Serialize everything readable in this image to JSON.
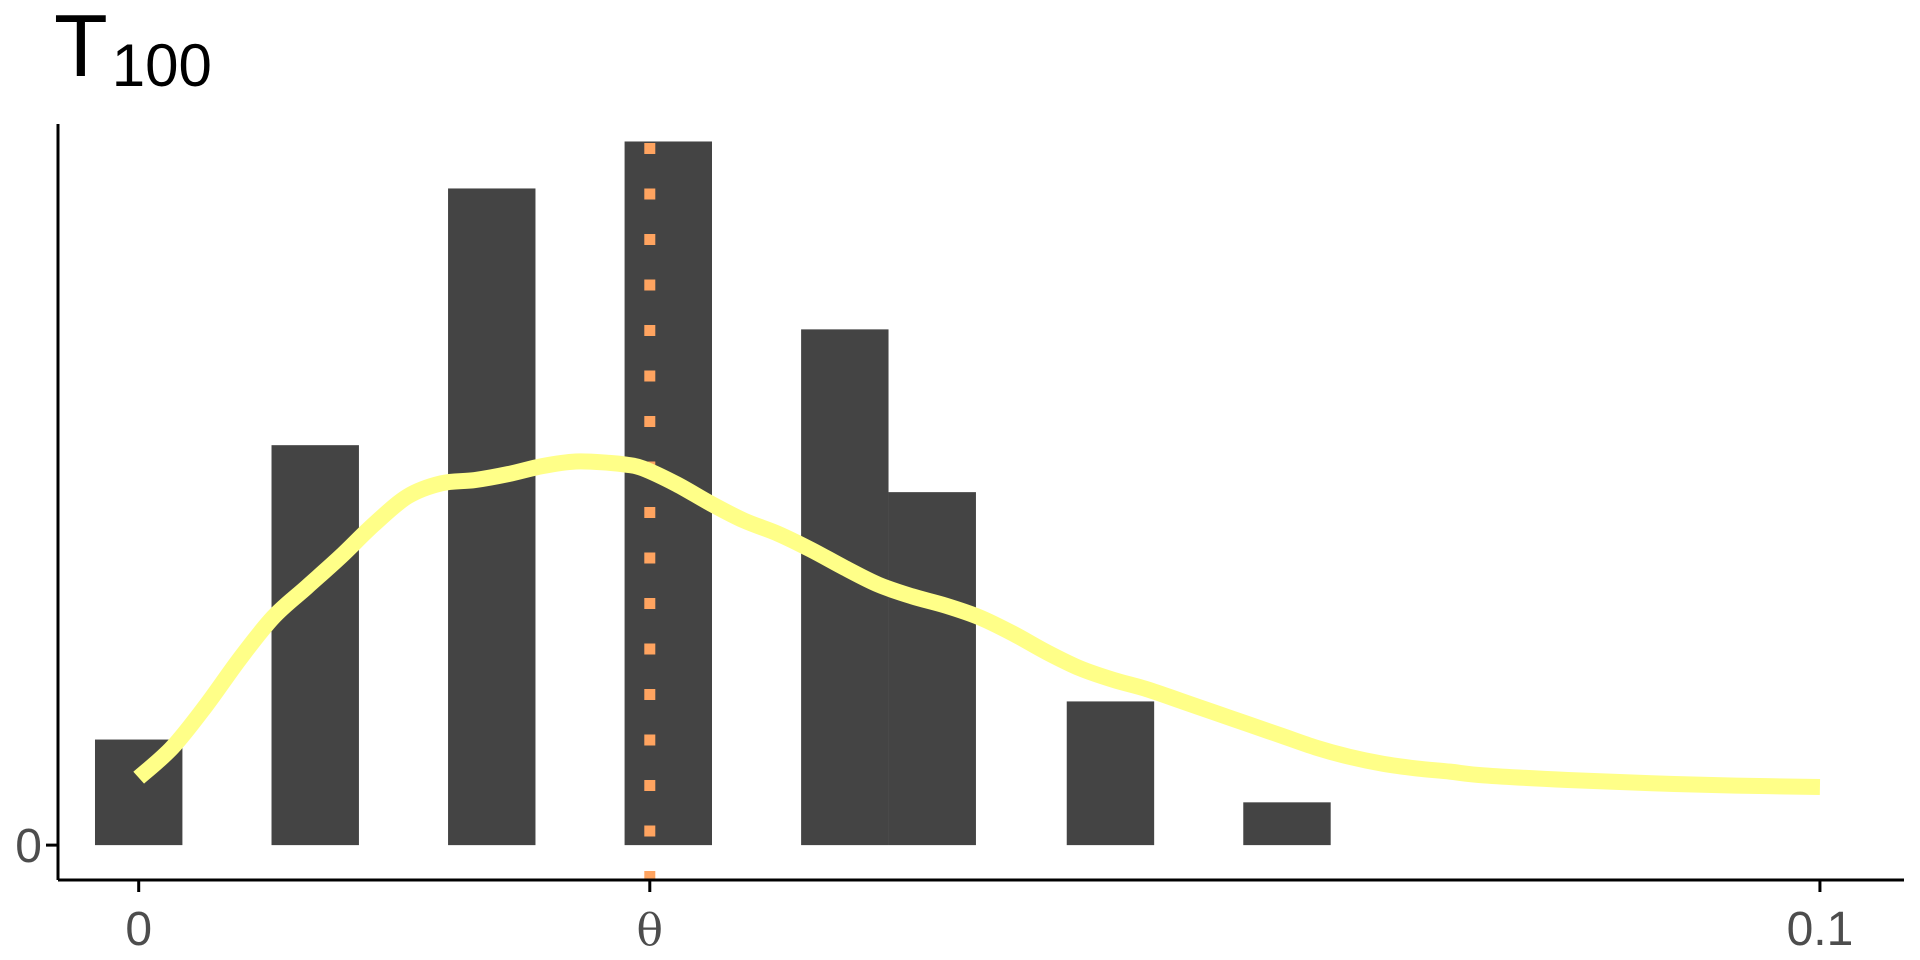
{
  "chart_data": {
    "type": "bar",
    "title": "T",
    "title_subscript": "100",
    "x_ticks": [
      {
        "value": 0,
        "label": "0"
      },
      {
        "value": 0.0304,
        "label": "θ"
      },
      {
        "value": 0.1,
        "label": "0.1"
      }
    ],
    "y_ticks": [
      {
        "value": 0,
        "label": "0"
      }
    ],
    "xlim": [
      -0.0048,
      0.105
    ],
    "ylim": [
      -0.075,
      1.585
    ],
    "bars": [
      {
        "x0": -0.0026,
        "x1": 0.0026,
        "value": 0.227
      },
      {
        "x0": 0.0079,
        "x1": 0.0131,
        "value": 0.86
      },
      {
        "x0": 0.0184,
        "x1": 0.0236,
        "value": 1.412
      },
      {
        "x0": 0.0289,
        "x1": 0.0341,
        "value": 1.513
      },
      {
        "x0": 0.0394,
        "x1": 0.0446,
        "value": 1.109
      },
      {
        "x0": 0.0446,
        "x1": 0.0498,
        "value": 0.759
      },
      {
        "x0": 0.0552,
        "x1": 0.0604,
        "value": 0.309
      },
      {
        "x0": 0.0657,
        "x1": 0.0709,
        "value": 0.092
      }
    ],
    "density": {
      "name": "density",
      "x": [
        0,
        0.002,
        0.004,
        0.006,
        0.008,
        0.01,
        0.012,
        0.014,
        0.016,
        0.018,
        0.02,
        0.022,
        0.024,
        0.026,
        0.028,
        0.029,
        0.03,
        0.032,
        0.034,
        0.036,
        0.038,
        0.04,
        0.042,
        0.044,
        0.046,
        0.048,
        0.05,
        0.052,
        0.054,
        0.056,
        0.058,
        0.06,
        0.062,
        0.064,
        0.066,
        0.068,
        0.07,
        0.072,
        0.074,
        0.076,
        0.078,
        0.08,
        0.085,
        0.09,
        0.095,
        0.1
      ],
      "values": [
        0.145,
        0.21,
        0.3,
        0.4,
        0.49,
        0.555,
        0.62,
        0.69,
        0.75,
        0.778,
        0.785,
        0.798,
        0.815,
        0.825,
        0.822,
        0.818,
        0.81,
        0.776,
        0.735,
        0.698,
        0.67,
        0.635,
        0.596,
        0.56,
        0.535,
        0.515,
        0.49,
        0.455,
        0.415,
        0.38,
        0.355,
        0.335,
        0.31,
        0.285,
        0.26,
        0.235,
        0.21,
        0.19,
        0.175,
        0.165,
        0.158,
        0.15,
        0.14,
        0.133,
        0.128,
        0.125
      ]
    },
    "reference_line": {
      "x": 0.0304,
      "label": "θ"
    },
    "colors": {
      "bars": "#444444",
      "density": "#ffff88",
      "reference_line": "#ffa460",
      "axis": "#000000",
      "tick_text": "#4d4d4d"
    },
    "grid": false,
    "legend": "none"
  }
}
